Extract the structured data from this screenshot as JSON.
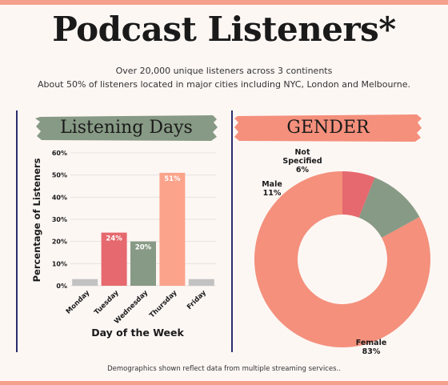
{
  "header": {
    "title": "Podcast Listeners*",
    "subtitle_1": "Over 20,000 unique listeners across 3 continents",
    "subtitle_2": "About 50% of listeners located in major cities including NYC, London and Melbourne."
  },
  "footer": {
    "note": "Demographics shown reflect data from multiple streaming services.."
  },
  "colors": {
    "green": "#879a85",
    "salmon": "#f4907c",
    "red": "#e5696e",
    "peach": "#fba38b",
    "gray": "#c2c2c2",
    "divider": "#2b2d6e"
  },
  "chart_data": [
    {
      "type": "bar",
      "title": "Listening Days",
      "xlabel": "Day of the Week",
      "ylabel": "Percentage of Listeners",
      "categories": [
        "Monday",
        "Tuesday",
        "Wednesday",
        "Thursday",
        "Friday"
      ],
      "values": [
        3,
        24,
        20,
        51,
        3
      ],
      "data_labels": [
        "",
        "24%",
        "20%",
        "51%",
        ""
      ],
      "bar_colors": [
        "#c2c2c2",
        "#e5696e",
        "#879a85",
        "#fba38b",
        "#c2c2c2"
      ],
      "ylim": [
        0,
        60
      ],
      "yticks": [
        0,
        10,
        20,
        30,
        40,
        50,
        60
      ],
      "ytick_labels": [
        "0%",
        "10%",
        "20%",
        "30%",
        "40%",
        "50%",
        "60%"
      ],
      "grid": true
    },
    {
      "type": "pie",
      "title": "GENDER",
      "donut": true,
      "slices": [
        {
          "name": "Female",
          "label": "Female",
          "value_label": "83%",
          "value": 83,
          "color": "#f4907c"
        },
        {
          "name": "Male",
          "label": "Male",
          "value_label": "11%",
          "value": 11,
          "color": "#879a85"
        },
        {
          "name": "Not Specified",
          "label": "Not Specified",
          "value_label": "6%",
          "value": 6,
          "color": "#e5696e"
        }
      ]
    }
  ]
}
